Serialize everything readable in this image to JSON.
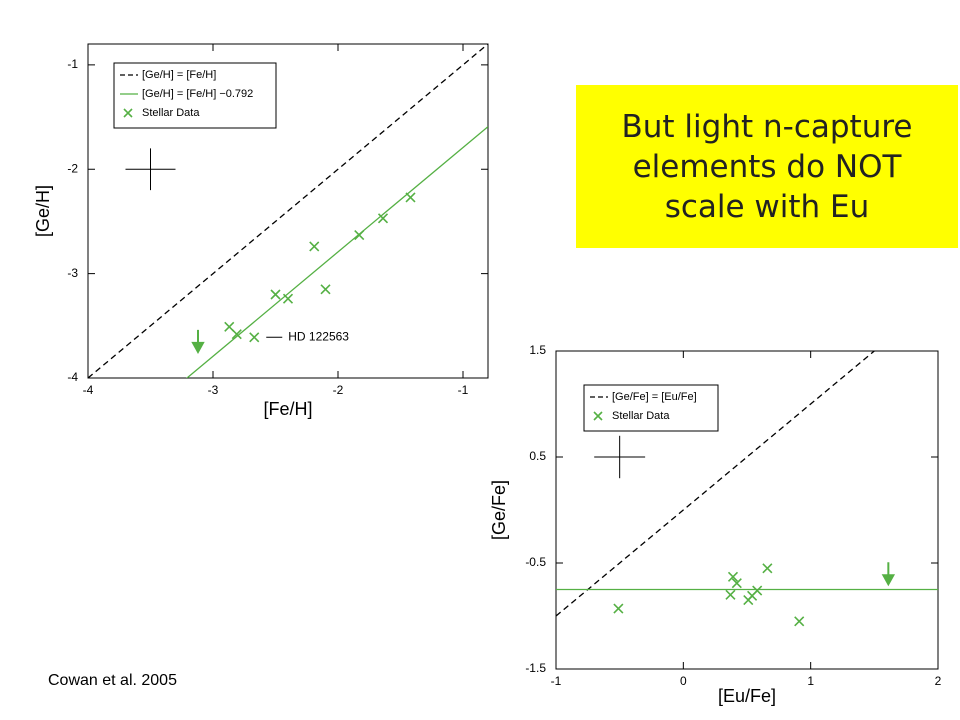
{
  "slide": {
    "callout": "But light n-capture elements do NOT scale with Eu",
    "citation": "Cowan et al. 2005"
  },
  "chart_data": [
    {
      "type": "scatter",
      "xlabel": "[Fe/H]",
      "ylabel": "[Ge/H]",
      "xlim": [
        -4,
        -0.8
      ],
      "ylim": [
        -4,
        -0.8
      ],
      "xticks": [
        -4,
        -3,
        -2,
        -1
      ],
      "yticks": [
        -4,
        -3,
        -2,
        -1
      ],
      "lines": [
        {
          "name": "[Ge/H] = [Fe/H]",
          "color": "#000000",
          "dashed": true,
          "slope": 1,
          "intercept": 0
        },
        {
          "name": "[Ge/H] = [Fe/H] −0.792",
          "color": "#55b044",
          "dashed": false,
          "slope": 1,
          "intercept": -0.792
        }
      ],
      "series": [
        {
          "name": "Stellar Data",
          "color": "#55b044",
          "x": [
            -2.87,
            -2.81,
            -2.67,
            -2.5,
            -2.4,
            -2.19,
            -2.1,
            -1.83,
            -1.64,
            -1.42
          ],
          "values": [
            -3.51,
            -3.58,
            -3.61,
            -3.2,
            -3.24,
            -2.74,
            -3.15,
            -2.63,
            -2.47,
            -2.27
          ]
        }
      ],
      "upper_limits": [
        {
          "x": -3.12,
          "y": -3.75,
          "color": "#55b044"
        }
      ],
      "error_bar": {
        "x": -3.5,
        "y": -2.0,
        "xerr": 0.2,
        "yerr": 0.2
      },
      "annotations": [
        {
          "text": "HD 122563",
          "x": -2.67,
          "y": -3.61
        }
      ]
    },
    {
      "type": "scatter",
      "xlabel": "[Eu/Fe]",
      "ylabel": "[Ge/Fe]",
      "xlim": [
        -1,
        2
      ],
      "ylim": [
        -1.5,
        1.5
      ],
      "xticks": [
        -1,
        0,
        1,
        2
      ],
      "yticks": [
        -1.5,
        -0.5,
        0.5,
        1.5
      ],
      "lines": [
        {
          "name": "[Ge/Fe] = [Eu/Fe]",
          "color": "#000000",
          "dashed": true,
          "slope": 1,
          "intercept": 0
        },
        {
          "color": "#55b044",
          "dashed": false,
          "slope": 0,
          "intercept": -0.75
        }
      ],
      "series": [
        {
          "name": "Stellar Data",
          "color": "#55b044",
          "x": [
            -0.51,
            0.37,
            0.39,
            0.42,
            0.51,
            0.54,
            0.58,
            0.66,
            0.91
          ],
          "values": [
            -0.93,
            -0.8,
            -0.63,
            -0.69,
            -0.85,
            -0.81,
            -0.76,
            -0.55,
            -1.05
          ]
        }
      ],
      "upper_limits": [
        {
          "x": 1.61,
          "y": -0.7,
          "color": "#55b044"
        }
      ],
      "error_bar": {
        "x": -0.5,
        "y": 0.5,
        "xerr": 0.2,
        "yerr": 0.2
      },
      "annotations": []
    }
  ]
}
